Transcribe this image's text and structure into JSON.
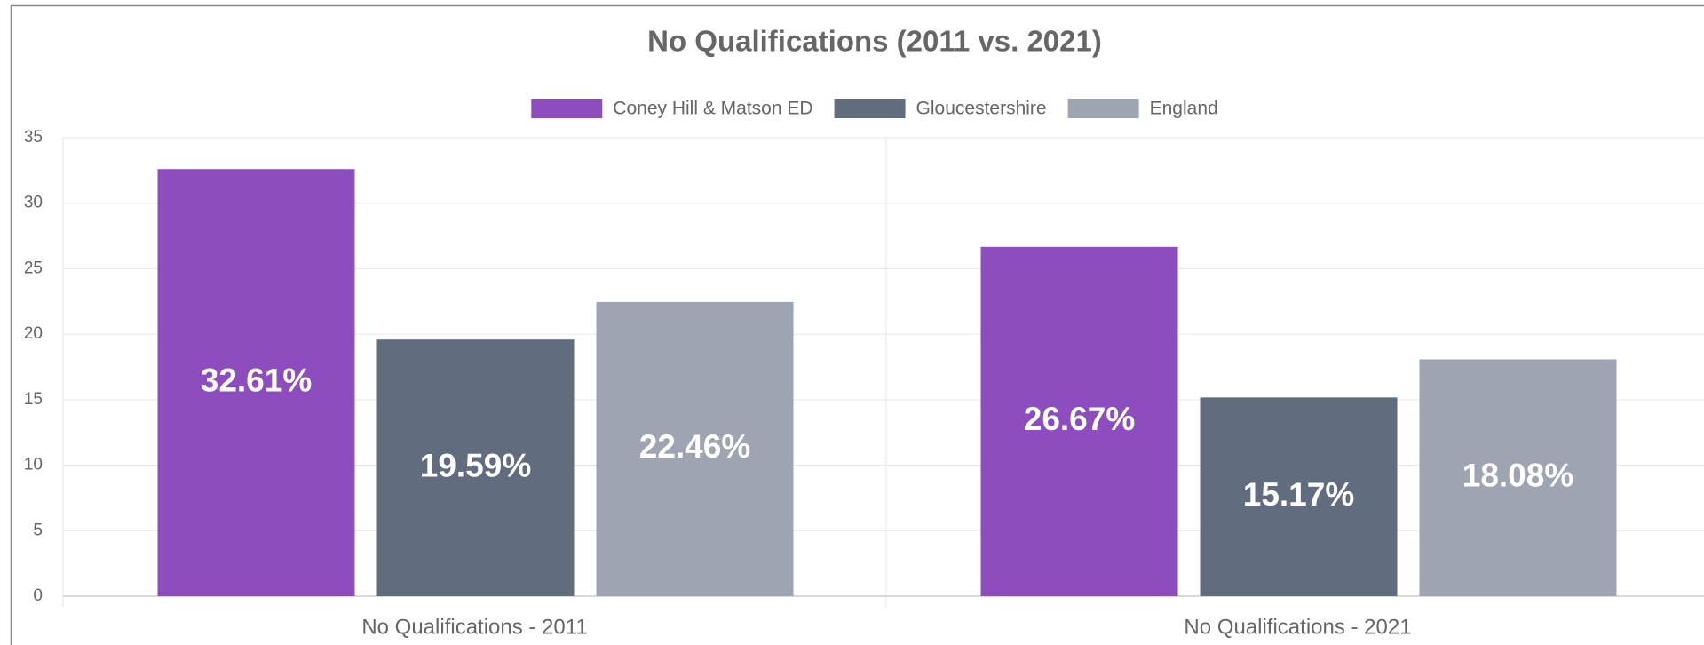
{
  "chart_data": {
    "type": "bar",
    "title": "No Qualifications (2011 vs. 2021)",
    "categories": [
      "No Qualifications - 2011",
      "No Qualifications - 2021"
    ],
    "series": [
      {
        "name": "Coney Hill & Matson ED",
        "color": "#8e4dbf",
        "values": [
          32.61,
          26.67
        ],
        "value_labels": [
          "32.61%",
          "26.67%"
        ]
      },
      {
        "name": "Gloucestershire",
        "color": "#626c7f",
        "values": [
          19.59,
          15.17
        ],
        "value_labels": [
          "19.59%",
          "15.17%"
        ]
      },
      {
        "name": "England",
        "color": "#9ea4b2",
        "values": [
          22.46,
          18.08
        ],
        "value_labels": [
          "22.46%",
          "18.08%"
        ]
      }
    ],
    "ylim": [
      0,
      35
    ],
    "yticks": [
      0,
      5,
      10,
      15,
      20,
      25,
      30,
      35
    ],
    "grid": true,
    "legend": "top"
  }
}
